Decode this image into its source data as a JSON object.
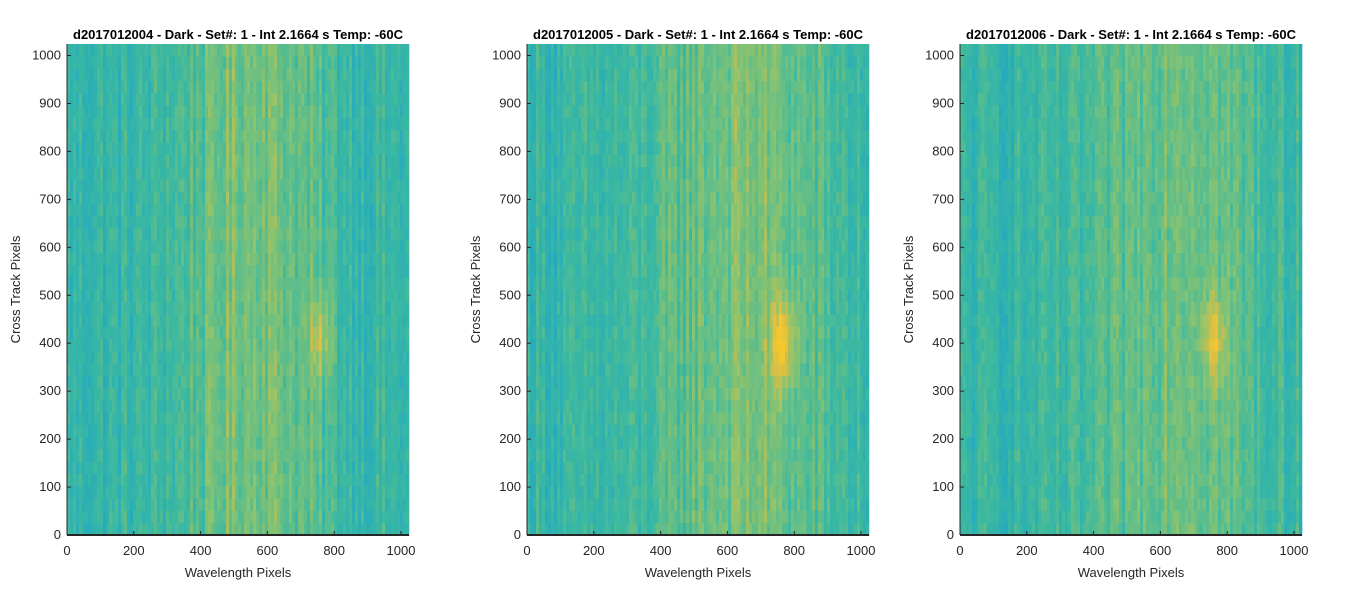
{
  "chart_data": [
    {
      "type": "heatmap",
      "title": "d2017012004 - Dark - Set#: 1 - Int 2.1664 s Temp: -60C",
      "xlabel": "Wavelength Pixels",
      "ylabel": "Cross Track Pixels",
      "xlim": [
        0,
        1024
      ],
      "ylim": [
        0,
        1024
      ],
      "xticks": [
        0,
        200,
        400,
        600,
        800,
        1000
      ],
      "yticks": [
        0,
        100,
        200,
        300,
        400,
        500,
        600,
        700,
        800,
        900,
        1000
      ],
      "colormap": "parula",
      "features": {
        "warm_band_center_x": 560,
        "warm_band_width_x": 220,
        "hot_spot_x": 760,
        "hot_spot_y": 410,
        "relative_intensity": 0.55
      }
    },
    {
      "type": "heatmap",
      "title": "d2017012005 - Dark - Set#: 1 - Int 2.1664 s Temp: -60C",
      "xlabel": "Wavelength Pixels",
      "ylabel": "Cross Track Pixels",
      "xlim": [
        0,
        1024
      ],
      "ylim": [
        0,
        1024
      ],
      "xticks": [
        0,
        200,
        400,
        600,
        800,
        1000
      ],
      "yticks": [
        0,
        100,
        200,
        300,
        400,
        500,
        600,
        700,
        800,
        900,
        1000
      ],
      "colormap": "parula",
      "features": {
        "warm_band_center_x": 650,
        "warm_band_width_x": 260,
        "hot_spot_x": 765,
        "hot_spot_y": 400,
        "relative_intensity": 0.85
      }
    },
    {
      "type": "heatmap",
      "title": "d2017012006 - Dark - Set#: 1 - Int 2.1664 s Temp: -60C",
      "xlabel": "Wavelength Pixels",
      "ylabel": "Cross Track Pixels",
      "xlim": [
        0,
        1024
      ],
      "ylim": [
        0,
        1024
      ],
      "xticks": [
        0,
        200,
        400,
        600,
        800,
        1000
      ],
      "yticks": [
        0,
        100,
        200,
        300,
        400,
        500,
        600,
        700,
        800,
        900,
        1000
      ],
      "colormap": "parula",
      "features": {
        "warm_band_center_x": 660,
        "warm_band_width_x": 240,
        "hot_spot_x": 760,
        "hot_spot_y": 410,
        "relative_intensity": 0.7
      }
    }
  ]
}
